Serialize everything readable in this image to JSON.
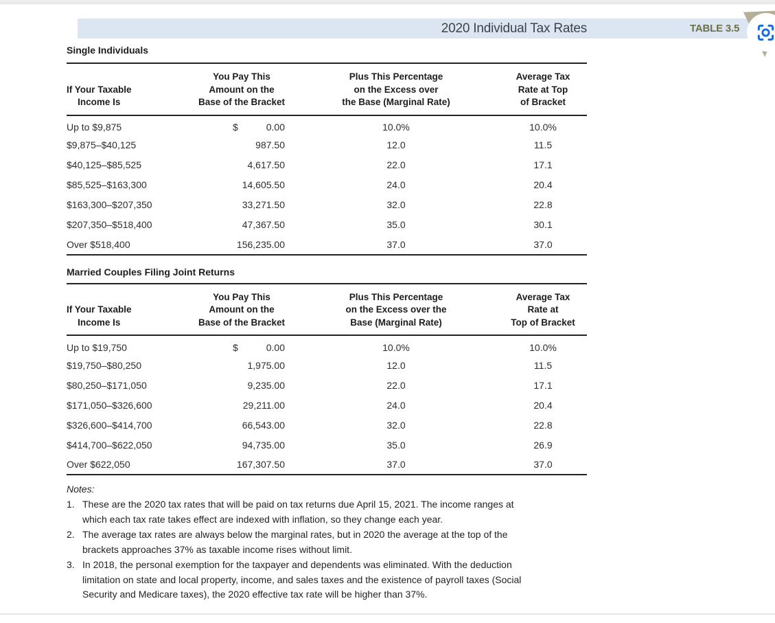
{
  "page": {
    "title": "2020 Individual Tax Rates",
    "table_label": "TABLE 3.5"
  },
  "colors": {
    "band_bg": "#dce6f3",
    "title_text": "#3d414b",
    "table_label_text": "#6c7045",
    "corner_triangle": "#b4af96",
    "screenshot_icon_blue": "#1a6fd4",
    "rule_dark": "#222222"
  },
  "tables": [
    {
      "section_title": "Single Individuals",
      "columns": [
        "If Your Taxable\nIncome Is",
        "You Pay This\nAmount on the\nBase of the Bracket",
        "Plus This Percentage\non the Excess over\nthe Base (Marginal Rate)",
        "Average Tax\nRate at Top\nof Bracket"
      ],
      "rows": [
        {
          "income": "Up to $9,875",
          "dollar": "$",
          "amount": "0.00",
          "marginal": "10.0%",
          "average": "10.0%"
        },
        {
          "income": "$9,875–$40,125",
          "dollar": "",
          "amount": "987.50",
          "marginal": "12.0",
          "average": "11.5"
        },
        {
          "income": "$40,125–$85,525",
          "dollar": "",
          "amount": "4,617.50",
          "marginal": "22.0",
          "average": "17.1"
        },
        {
          "income": "$85,525–$163,300",
          "dollar": "",
          "amount": "14,605.50",
          "marginal": "24.0",
          "average": "20.4"
        },
        {
          "income": "$163,300–$207,350",
          "dollar": "",
          "amount": "33,271.50",
          "marginal": "32.0",
          "average": "22.8"
        },
        {
          "income": "$207,350–$518,400",
          "dollar": "",
          "amount": "47,367.50",
          "marginal": "35.0",
          "average": "30.1"
        },
        {
          "income": "Over $518,400",
          "dollar": "",
          "amount": "156,235.00",
          "marginal": "37.0",
          "average": "37.0"
        }
      ]
    },
    {
      "section_title": "Married Couples Filing Joint Returns",
      "columns": [
        "If Your Taxable\nIncome Is",
        "You Pay This\nAmount on the\nBase of the Bracket",
        "Plus This Percentage\non the Excess over the\nBase (Marginal Rate)",
        "Average Tax\nRate at\nTop of Bracket"
      ],
      "rows": [
        {
          "income": "Up to $19,750",
          "dollar": "$",
          "amount": "0.00",
          "marginal": "10.0%",
          "average": "10.0%"
        },
        {
          "income": "$19,750–$80,250",
          "dollar": "",
          "amount": "1,975.00",
          "marginal": "12.0",
          "average": "11.5"
        },
        {
          "income": "$80,250–$171,050",
          "dollar": "",
          "amount": "9,235.00",
          "marginal": "22.0",
          "average": "17.1"
        },
        {
          "income": "$171,050–$326,600",
          "dollar": "",
          "amount": "29,211.00",
          "marginal": "24.0",
          "average": "20.4"
        },
        {
          "income": "$326,600–$414,700",
          "dollar": "",
          "amount": "66,543.00",
          "marginal": "32.0",
          "average": "22.8"
        },
        {
          "income": "$414,700–$622,050",
          "dollar": "",
          "amount": "94,735.00",
          "marginal": "35.0",
          "average": "26.9"
        },
        {
          "income": "Over $622,050",
          "dollar": "",
          "amount": "167,307.50",
          "marginal": "37.0",
          "average": "37.0"
        }
      ]
    }
  ],
  "notes": {
    "label": "Notes:",
    "items": [
      {
        "num": "1.",
        "text": "These are the 2020 tax rates that will be paid on tax returns due April 15, 2021. The income ranges at\nwhich each tax rate takes effect are indexed with inflation, so they change each year."
      },
      {
        "num": "2.",
        "text": "The average tax rates are always below the marginal rates, but in 2020 the average at the top of the\nbrackets approaches 37% as taxable income rises without limit."
      },
      {
        "num": "3.",
        "text": "In 2018, the personal exemption for the taxpayer and dependents was eliminated. With the deduction\nlimitation on state and local property, income, and sales taxes and the existence of payroll taxes (Social\nSecurity and Medicare taxes), the 2020 effective tax rate will be higher than 37%."
      }
    ]
  },
  "icons": {
    "screenshot_icon": "screenshot-focus-icon"
  }
}
